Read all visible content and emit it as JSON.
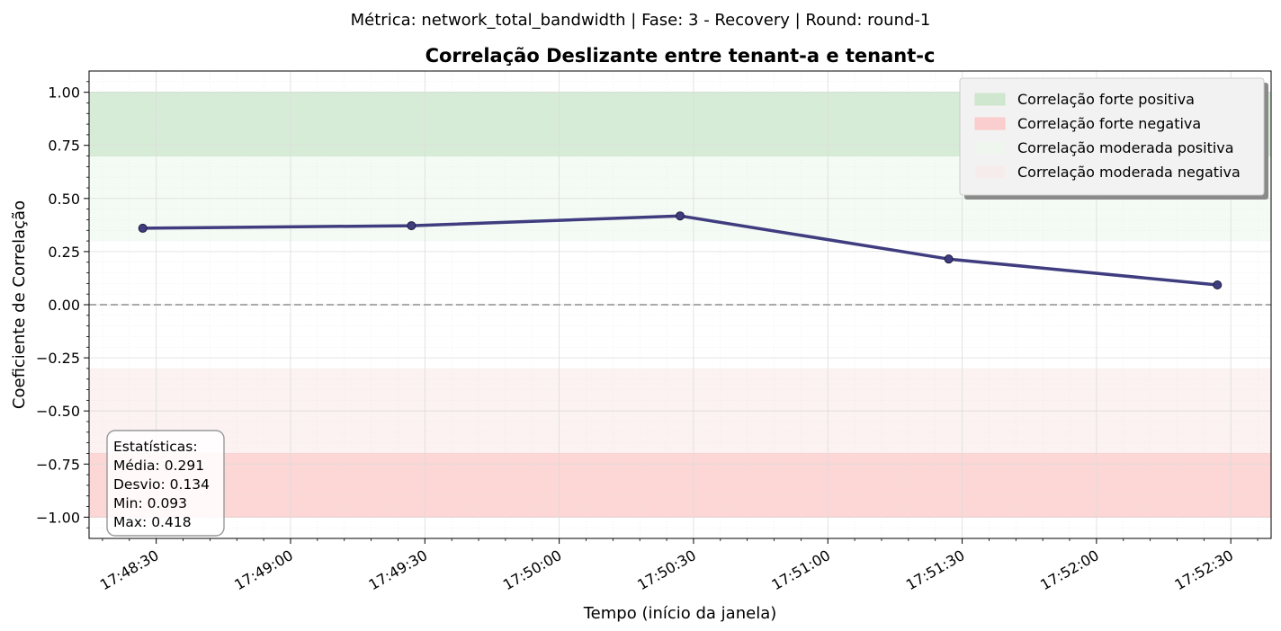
{
  "suptitle": "Métrica: network_total_bandwidth | Fase: 3 - Recovery | Round: round-1",
  "chart_data": {
    "type": "line",
    "title": "Correlação Deslizante entre tenant-a e tenant-c",
    "xlabel": "Tempo (início da janela)",
    "ylabel": "Coeficiente de Correlação",
    "x": [
      "17:48:27",
      "17:49:27",
      "17:50:27",
      "17:51:27",
      "17:52:27"
    ],
    "series": [
      {
        "values": [
          0.36,
          0.372,
          0.418,
          0.215,
          0.093
        ],
        "color": "#3f3d7f"
      }
    ],
    "xlim": [
      "17:48:15",
      "17:52:39"
    ],
    "ylim": [
      -1.1,
      1.1
    ],
    "x_ticks": [
      "17:48:30",
      "17:49:00",
      "17:49:30",
      "17:50:00",
      "17:50:30",
      "17:51:00",
      "17:51:30",
      "17:52:00",
      "17:52:30"
    ],
    "y_ticks": [
      "1.00",
      "0.75",
      "0.50",
      "0.25",
      "0.00",
      "−0.25",
      "−0.50",
      "−0.75",
      "−1.00"
    ],
    "y_tick_values": [
      1.0,
      0.75,
      0.5,
      0.25,
      0.0,
      -0.25,
      -0.5,
      -0.75,
      -1.0
    ],
    "grid": true,
    "reference_line": {
      "y": 0,
      "style": "dashed",
      "color": "#aaaaaa"
    },
    "bands": [
      {
        "label": "Correlação forte positiva",
        "from": 0.7,
        "to": 1.0,
        "color": "#c9e5c9"
      },
      {
        "label": "Correlação forte negativa",
        "from": -1.0,
        "to": -0.7,
        "color": "#fcc8c8"
      },
      {
        "label": "Correlação moderada positiva",
        "from": 0.3,
        "to": 0.7,
        "color": "#ecf8ec"
      },
      {
        "label": "Correlação moderada negativa",
        "from": -0.7,
        "to": -0.3,
        "color": "#faeaea"
      }
    ],
    "legend_position": "top-right",
    "stats": {
      "title": "Estatísticas:",
      "lines": [
        "Média: 0.291",
        "Desvio: 0.134",
        "Min: 0.093",
        "Max: 0.418"
      ]
    }
  }
}
